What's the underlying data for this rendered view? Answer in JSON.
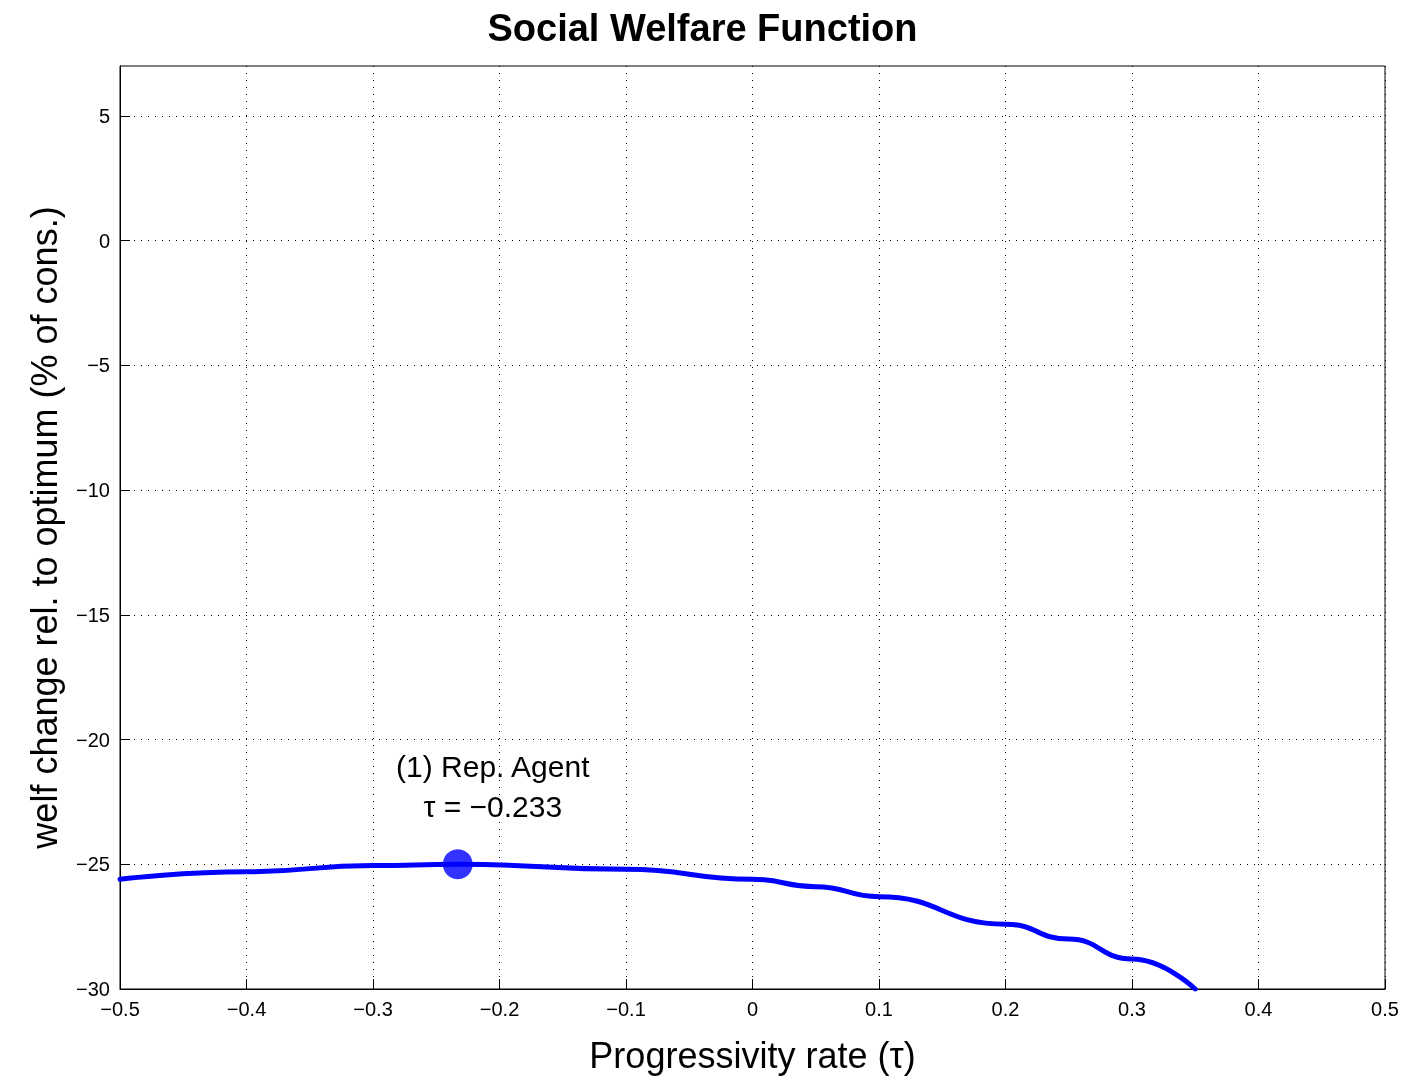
{
  "chart_data": {
    "type": "line",
    "title": "Social Welfare Function",
    "xlabel": "Progressivity rate (τ)",
    "ylabel": "welf change rel. to optimum (% of cons.)",
    "series": [
      {
        "color": "#0000ff",
        "marker": "none",
        "x": [
          -0.5,
          -0.4,
          -0.3,
          -0.233,
          -0.1,
          0,
          0.05,
          0.1,
          0.2,
          0.25,
          0.3,
          0.35
        ],
        "values": [
          -25.6,
          -25.3,
          -25.05,
          -25,
          -25.2,
          -25.6,
          -25.9,
          -26.3,
          -27.4,
          -28.0,
          -28.8,
          -30
        ]
      },
      {
        "type": "scatter",
        "color": "#0000ff",
        "marker": "circle",
        "x": [
          -0.233
        ],
        "values": [
          -25
        ]
      }
    ],
    "annotations": [
      {
        "text": "(1) Rep. Agent\nτ = −0.233",
        "x": -0.233,
        "y": -25
      }
    ],
    "xlim": [
      -0.5,
      0.5
    ],
    "xticks": [
      {
        "value": -0.5,
        "label": "−0.5"
      },
      {
        "value": -0.4,
        "label": "−0.4"
      },
      {
        "value": -0.3,
        "label": "−0.3"
      },
      {
        "value": -0.2,
        "label": "−0.2"
      },
      {
        "value": -0.1,
        "label": "−0.1"
      },
      0,
      0.1,
      0.2,
      0.3,
      0.4,
      0.5
    ],
    "ylim": [
      -30,
      7
    ],
    "yticks": [
      {
        "value": -30,
        "label": "−30"
      },
      {
        "value": -25,
        "label": "−25"
      },
      {
        "value": -20,
        "label": "−20"
      },
      {
        "value": -15,
        "label": "−15"
      },
      {
        "value": -10,
        "label": "−10"
      },
      {
        "value": -5,
        "label": "−5"
      },
      0,
      5
    ],
    "grid": true
  }
}
